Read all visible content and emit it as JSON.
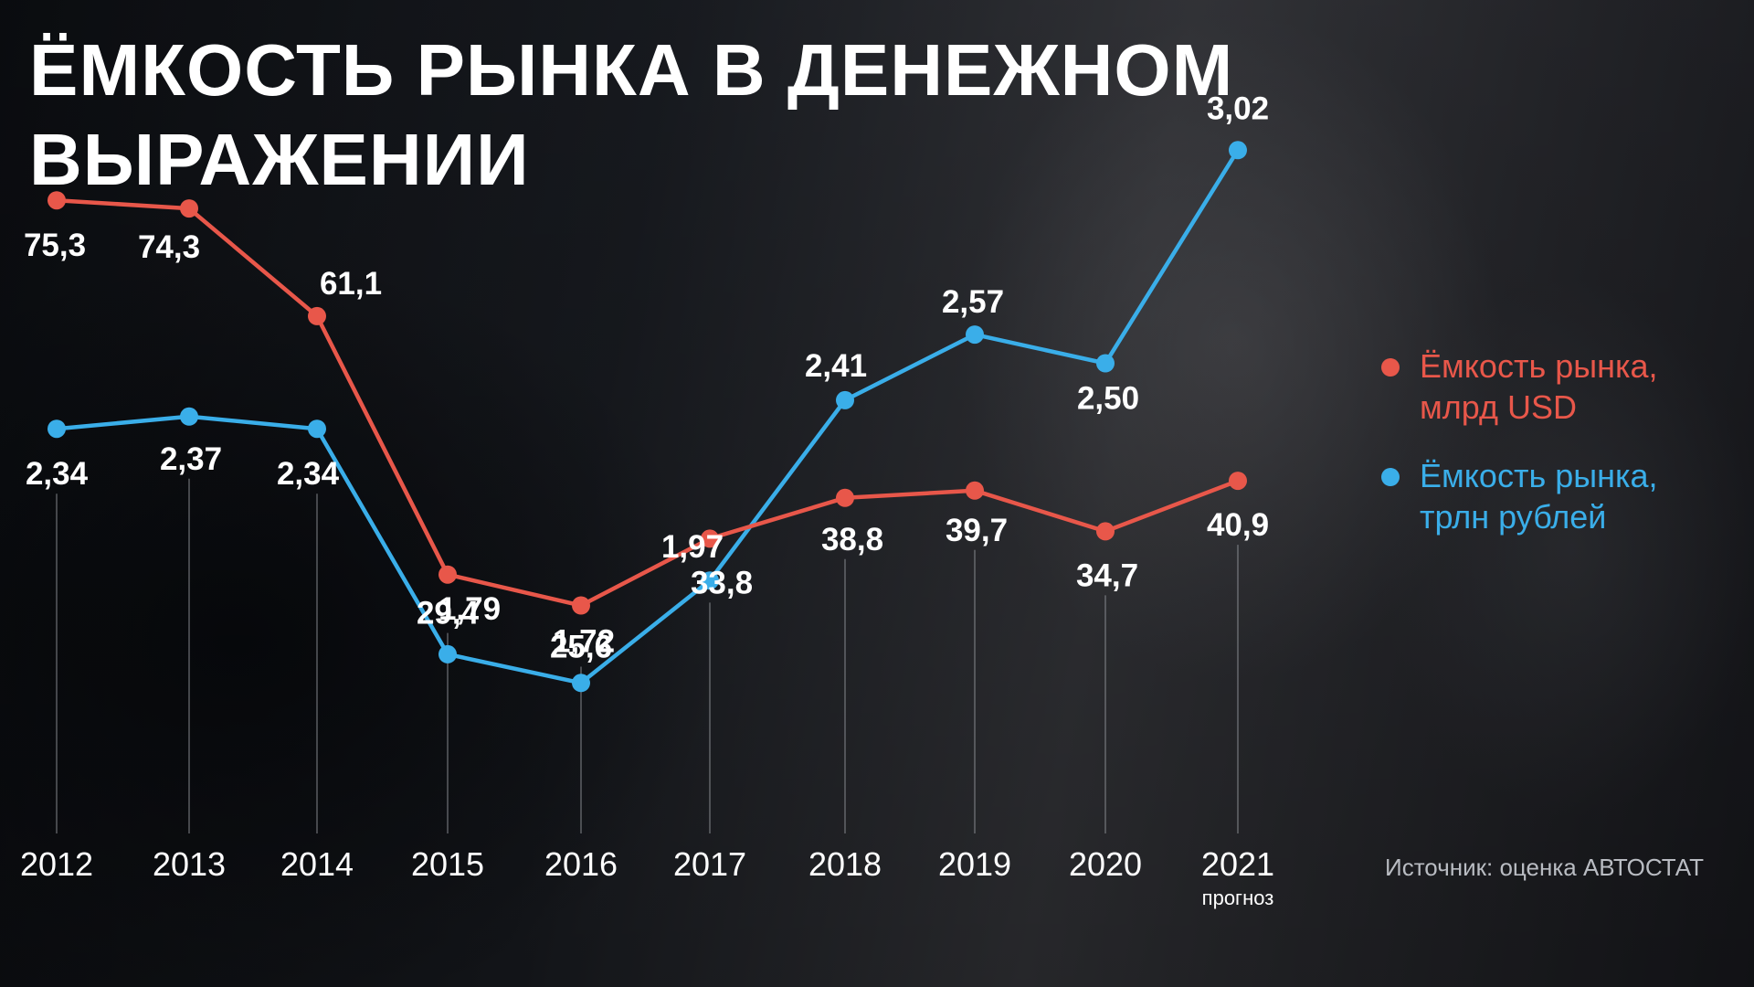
{
  "title": {
    "line1": "ЁМКОСТЬ РЫНКА В ДЕНЕЖНОМ",
    "line2": "ВЫРАЖЕНИИ"
  },
  "legend": {
    "usd_line1": "Ёмкость рынка,",
    "usd_line2": "млрд USD",
    "rub_line1": "Ёмкость рынка,",
    "rub_line2": "трлн рублей"
  },
  "source": "Источник: оценка АВТОСТАТ",
  "colors": {
    "usd": "#e8574a",
    "rub": "#3aaee9",
    "text": "#ffffff",
    "guide": "#9a9ca2"
  },
  "chart_data": {
    "type": "line",
    "categories": [
      "2012",
      "2013",
      "2014",
      "2015",
      "2016",
      "2017",
      "2018",
      "2019",
      "2020",
      "2021"
    ],
    "category_notes": [
      "",
      "",
      "",
      "",
      "",
      "",
      "",
      "",
      "",
      "прогноз"
    ],
    "series": [
      {
        "name": "Ёмкость рынка, млрд USD",
        "values": [
          75.3,
          74.3,
          61.1,
          29.4,
          25.6,
          33.8,
          38.8,
          39.7,
          34.7,
          40.9
        ],
        "labels": [
          "75,3",
          "74,3",
          "61,1",
          "29,4",
          "25,6",
          "33,8",
          "38,8",
          "39,7",
          "34,7",
          "40,9"
        ]
      },
      {
        "name": "Ёмкость рынка, трлн рублей",
        "values": [
          2.34,
          2.37,
          2.34,
          1.79,
          1.72,
          1.97,
          2.41,
          2.57,
          2.5,
          3.02
        ],
        "labels": [
          "2,34",
          "2,37",
          "2,34",
          "1,79",
          "1,72",
          "1,97",
          "2,41",
          "2,57",
          "2,50",
          "3,02"
        ]
      }
    ],
    "y_axes": "dual",
    "grid": false,
    "legend_position": "right"
  }
}
